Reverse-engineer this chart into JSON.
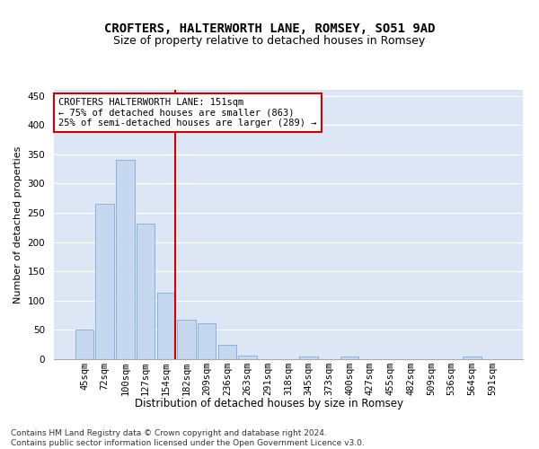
{
  "title": "CROFTERS, HALTERWORTH LANE, ROMSEY, SO51 9AD",
  "subtitle": "Size of property relative to detached houses in Romsey",
  "xlabel": "Distribution of detached houses by size in Romsey",
  "ylabel": "Number of detached properties",
  "bar_labels": [
    "45sqm",
    "72sqm",
    "100sqm",
    "127sqm",
    "154sqm",
    "182sqm",
    "209sqm",
    "236sqm",
    "263sqm",
    "291sqm",
    "318sqm",
    "345sqm",
    "373sqm",
    "400sqm",
    "427sqm",
    "455sqm",
    "482sqm",
    "509sqm",
    "536sqm",
    "564sqm",
    "591sqm"
  ],
  "bar_values": [
    50,
    266,
    340,
    232,
    113,
    67,
    61,
    24,
    6,
    0,
    0,
    5,
    0,
    5,
    0,
    0,
    0,
    0,
    0,
    5,
    0
  ],
  "bar_color": "#c5d8f0",
  "bar_edgecolor": "#7aadd4",
  "annotation_text": "CROFTERS HALTERWORTH LANE: 151sqm\n← 75% of detached houses are smaller (863)\n25% of semi-detached houses are larger (289) →",
  "annotation_box_facecolor": "#ffffff",
  "annotation_box_edgecolor": "#cc0000",
  "vline_color": "#cc0000",
  "vline_index": 4,
  "ylim": [
    0,
    460
  ],
  "yticks": [
    0,
    50,
    100,
    150,
    200,
    250,
    300,
    350,
    400,
    450
  ],
  "fig_facecolor": "#ffffff",
  "plot_facecolor": "#dce6f5",
  "grid_color": "#ffffff",
  "footer": "Contains HM Land Registry data © Crown copyright and database right 2024.\nContains public sector information licensed under the Open Government Licence v3.0.",
  "title_fontsize": 10,
  "subtitle_fontsize": 9,
  "xlabel_fontsize": 8.5,
  "ylabel_fontsize": 8,
  "tick_fontsize": 7.5,
  "annot_fontsize": 7.5,
  "footer_fontsize": 6.5
}
